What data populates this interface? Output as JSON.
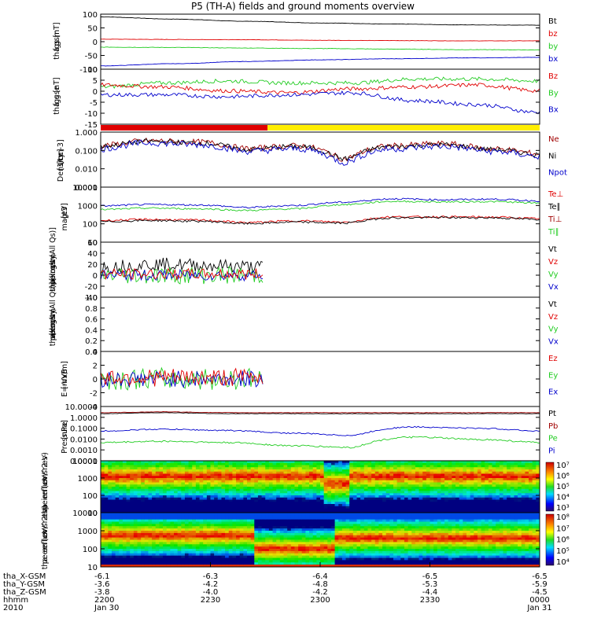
{
  "title": "P5 (TH-A) fields and ground moments overview",
  "colors": {
    "black": "#000000",
    "red": "#e00000",
    "green": "#22cc22",
    "blue": "#0000cc",
    "yellow": "#ffee00",
    "darkred": "#a00000",
    "spec_high": "#a00000",
    "spec_low": "#0a0a7a"
  },
  "panels": [
    {
      "id": "bgsm",
      "ylabel": [
        "tha",
        "fgs",
        "gsm",
        "[nT]"
      ],
      "scale": "linear",
      "ylim": [
        -100,
        100
      ],
      "yticks": [
        "100",
        "50",
        "0",
        "-50",
        "-100"
      ],
      "legend": [
        "Bt",
        "bz",
        "by",
        "bx"
      ],
      "legend_colors": [
        "black",
        "red",
        "green",
        "blue"
      ]
    },
    {
      "id": "bdsl",
      "ylabel": [
        "tha",
        "fgs",
        "gse",
        "[nT]"
      ],
      "scale": "linear",
      "ylim": [
        -18,
        10
      ],
      "yticks": [
        "10",
        "5",
        "0",
        "-5",
        "-10",
        "-15"
      ],
      "legend": [
        "Bz",
        "By",
        "Bx"
      ],
      "legend_colors": [
        "red",
        "green",
        "blue"
      ]
    },
    {
      "id": "density",
      "ylabel": [
        "Density",
        "[1/cc]",
        "[cm-3]"
      ],
      "scale": "log",
      "ylim": [
        0.001,
        2
      ],
      "yticks": [
        "1.000",
        "0.100",
        "0.010",
        "0.001"
      ],
      "legend": [
        "Ne",
        "Ni",
        "Npot"
      ],
      "legend_colors": [
        "darkred",
        "black",
        "blue"
      ]
    },
    {
      "id": "temp",
      "ylabel": [
        "magt3",
        "[eV]"
      ],
      "scale": "log",
      "ylim": [
        10,
        20000
      ],
      "yticks": [
        "10000",
        "1000",
        "100",
        "10"
      ],
      "legend": [
        "Te⊥",
        "Te∥",
        "Ti⊥",
        "Ti∥"
      ],
      "legend_colors": [
        "red",
        "black",
        "darkred",
        "green"
      ]
    },
    {
      "id": "vpeir",
      "ylabel": [
        "tha",
        "peir",
        "velocity",
        "gsm",
        "[km/s (All Qs)]"
      ],
      "scale": "linear",
      "ylim": [
        -40,
        60
      ],
      "yticks": [
        "60",
        "40",
        "20",
        "0",
        "-20",
        "-40"
      ],
      "legend": [
        "Vt",
        "Vz",
        "Vy",
        "Vx"
      ],
      "legend_colors": [
        "black",
        "red",
        "green",
        "blue"
      ]
    },
    {
      "id": "vpeer",
      "ylabel": [
        "tha",
        "peer",
        "velocity",
        "gsm",
        "[km/s (All Qs)]"
      ],
      "scale": "linear",
      "ylim": [
        0,
        1
      ],
      "yticks": [
        "1.0",
        "0.8",
        "0.6",
        "0.4",
        "0.2",
        "0.0"
      ],
      "legend": [
        "Vt",
        "Vz",
        "Vy",
        "Vx"
      ],
      "legend_colors": [
        "black",
        "red",
        "green",
        "blue"
      ]
    },
    {
      "id": "efield",
      "ylabel": [
        "E=-VxB",
        "[mV/m]"
      ],
      "scale": "linear",
      "ylim": [
        -4,
        4
      ],
      "yticks": [
        "4",
        "2",
        "0",
        "-2",
        "-4"
      ],
      "legend": [
        "Ez",
        "Ey",
        "Ex"
      ],
      "legend_colors": [
        "red",
        "green",
        "blue"
      ]
    },
    {
      "id": "pressure",
      "ylabel": [
        "Pressure",
        "[nPa]"
      ],
      "scale": "log",
      "ylim": [
        0.0001,
        20
      ],
      "yticks": [
        "10.0000",
        "1.0000",
        "0.1000",
        "0.0100",
        "0.0010",
        "0.0001"
      ],
      "legend": [
        "Pt",
        "Pb",
        "Pe",
        "Pi"
      ],
      "legend_colors": [
        "black",
        "darkred",
        "green",
        "blue"
      ]
    },
    {
      "id": "ispec",
      "ylabel": [
        "tha",
        "peir",
        "en",
        "eflux",
        "eV/",
        "(cm^2-s-",
        "sr-eV)"
      ],
      "scale": "log",
      "ylim": [
        5,
        40000
      ],
      "yticks": [
        "10000",
        "1000",
        "100",
        "10"
      ],
      "colorbar_ticks": [
        "10⁷",
        "10⁶",
        "10⁵",
        "10⁴",
        "10³"
      ]
    },
    {
      "id": "espec",
      "ylabel": [
        "tha",
        "peer",
        "en",
        "eflux",
        "eV/",
        "(cm^2-s-",
        "sr-eV)"
      ],
      "scale": "log",
      "ylim": [
        5,
        40000
      ],
      "yticks": [
        "10000",
        "1000",
        "100",
        "10"
      ],
      "colorbar_ticks": [
        "10⁸",
        "10⁷",
        "10⁶",
        "10⁵",
        "10⁴"
      ]
    }
  ],
  "time_axis": {
    "row_labels": [
      "tha_X-GSM",
      "tha_Y-GSM",
      "tha_Z-GSM",
      "hhmm",
      "2010"
    ],
    "ticks": [
      {
        "values": [
          "-6.1",
          "-3.6",
          "-3.8",
          "2200",
          "Jan 30"
        ]
      },
      {
        "values": [
          "-6.3",
          "-4.2",
          "-4.0",
          "2230",
          ""
        ]
      },
      {
        "values": [
          "-6.4",
          "-4.8",
          "-4.2",
          "2300",
          ""
        ]
      },
      {
        "values": [
          "-6.5",
          "-5.3",
          "-4.4",
          "2330",
          ""
        ]
      },
      {
        "values": [
          "-6.5",
          "-5.9",
          "-4.5",
          "0000",
          "Jan 31"
        ]
      }
    ]
  },
  "chart_data": {
    "type": "line",
    "title": "P5 (TH-A) fields and ground moments overview",
    "x_time_range": [
      "2010-01-30 22:00",
      "2010-01-31 00:00"
    ],
    "series": [
      {
        "panel": "bgsm",
        "name": "Bt",
        "x": [
          "22:00",
          "22:30",
          "23:00",
          "23:30",
          "00:00"
        ],
        "values": [
          90,
          76,
          66,
          62,
          60
        ]
      },
      {
        "panel": "bgsm",
        "name": "bz",
        "x": [
          "22:00",
          "22:30",
          "23:00",
          "23:30",
          "00:00"
        ],
        "values": [
          8,
          7,
          4,
          4,
          3
        ]
      },
      {
        "panel": "bgsm",
        "name": "by",
        "x": [
          "22:00",
          "22:30",
          "23:00",
          "23:30",
          "00:00"
        ],
        "values": [
          -20,
          -22,
          -25,
          -28,
          -30
        ]
      },
      {
        "panel": "bgsm",
        "name": "bx",
        "x": [
          "22:00",
          "22:30",
          "23:00",
          "23:30",
          "00:00"
        ],
        "values": [
          -88,
          -75,
          -64,
          -60,
          -58
        ]
      },
      {
        "panel": "bdsl",
        "name": "Bz",
        "x": [
          "22:00",
          "22:30",
          "23:00",
          "23:30",
          "00:00"
        ],
        "values": [
          2,
          -1,
          0,
          2,
          -2
        ]
      },
      {
        "panel": "bdsl",
        "name": "By",
        "x": [
          "22:00",
          "22:30",
          "23:00",
          "23:30",
          "00:00"
        ],
        "values": [
          2,
          4,
          3,
          5,
          4
        ]
      },
      {
        "panel": "bdsl",
        "name": "Bx",
        "x": [
          "22:00",
          "22:30",
          "23:00",
          "23:30",
          "00:00"
        ],
        "values": [
          -3,
          -3,
          -4,
          -7,
          -12
        ]
      },
      {
        "panel": "density",
        "name": "Ni",
        "x": [
          "22:00",
          "22:30",
          "23:00",
          "23:30",
          "00:00"
        ],
        "values": [
          0.3,
          0.4,
          0.1,
          0.3,
          0.1
        ]
      },
      {
        "panel": "temp",
        "name": "Te∥",
        "x": [
          "22:00",
          "22:30",
          "23:00",
          "23:30",
          "00:00"
        ],
        "values": [
          1500,
          1700,
          3000,
          3500,
          3000
        ]
      },
      {
        "panel": "temp",
        "name": "Ti⊥",
        "x": [
          "22:00",
          "22:30",
          "23:00",
          "23:30",
          "00:00"
        ],
        "values": [
          200,
          200,
          300,
          350,
          300
        ]
      },
      {
        "panel": "pressure",
        "name": "Pi",
        "x": [
          "22:00",
          "22:30",
          "23:00",
          "23:30",
          "00:00"
        ],
        "values": [
          0.1,
          0.1,
          0.05,
          0.2,
          0.1
        ]
      },
      {
        "panel": "pressure",
        "name": "Pe",
        "x": [
          "22:00",
          "22:30",
          "23:00",
          "23:30",
          "00:00"
        ],
        "values": [
          0.01,
          0.01,
          0.004,
          0.02,
          0.01
        ]
      }
    ]
  }
}
